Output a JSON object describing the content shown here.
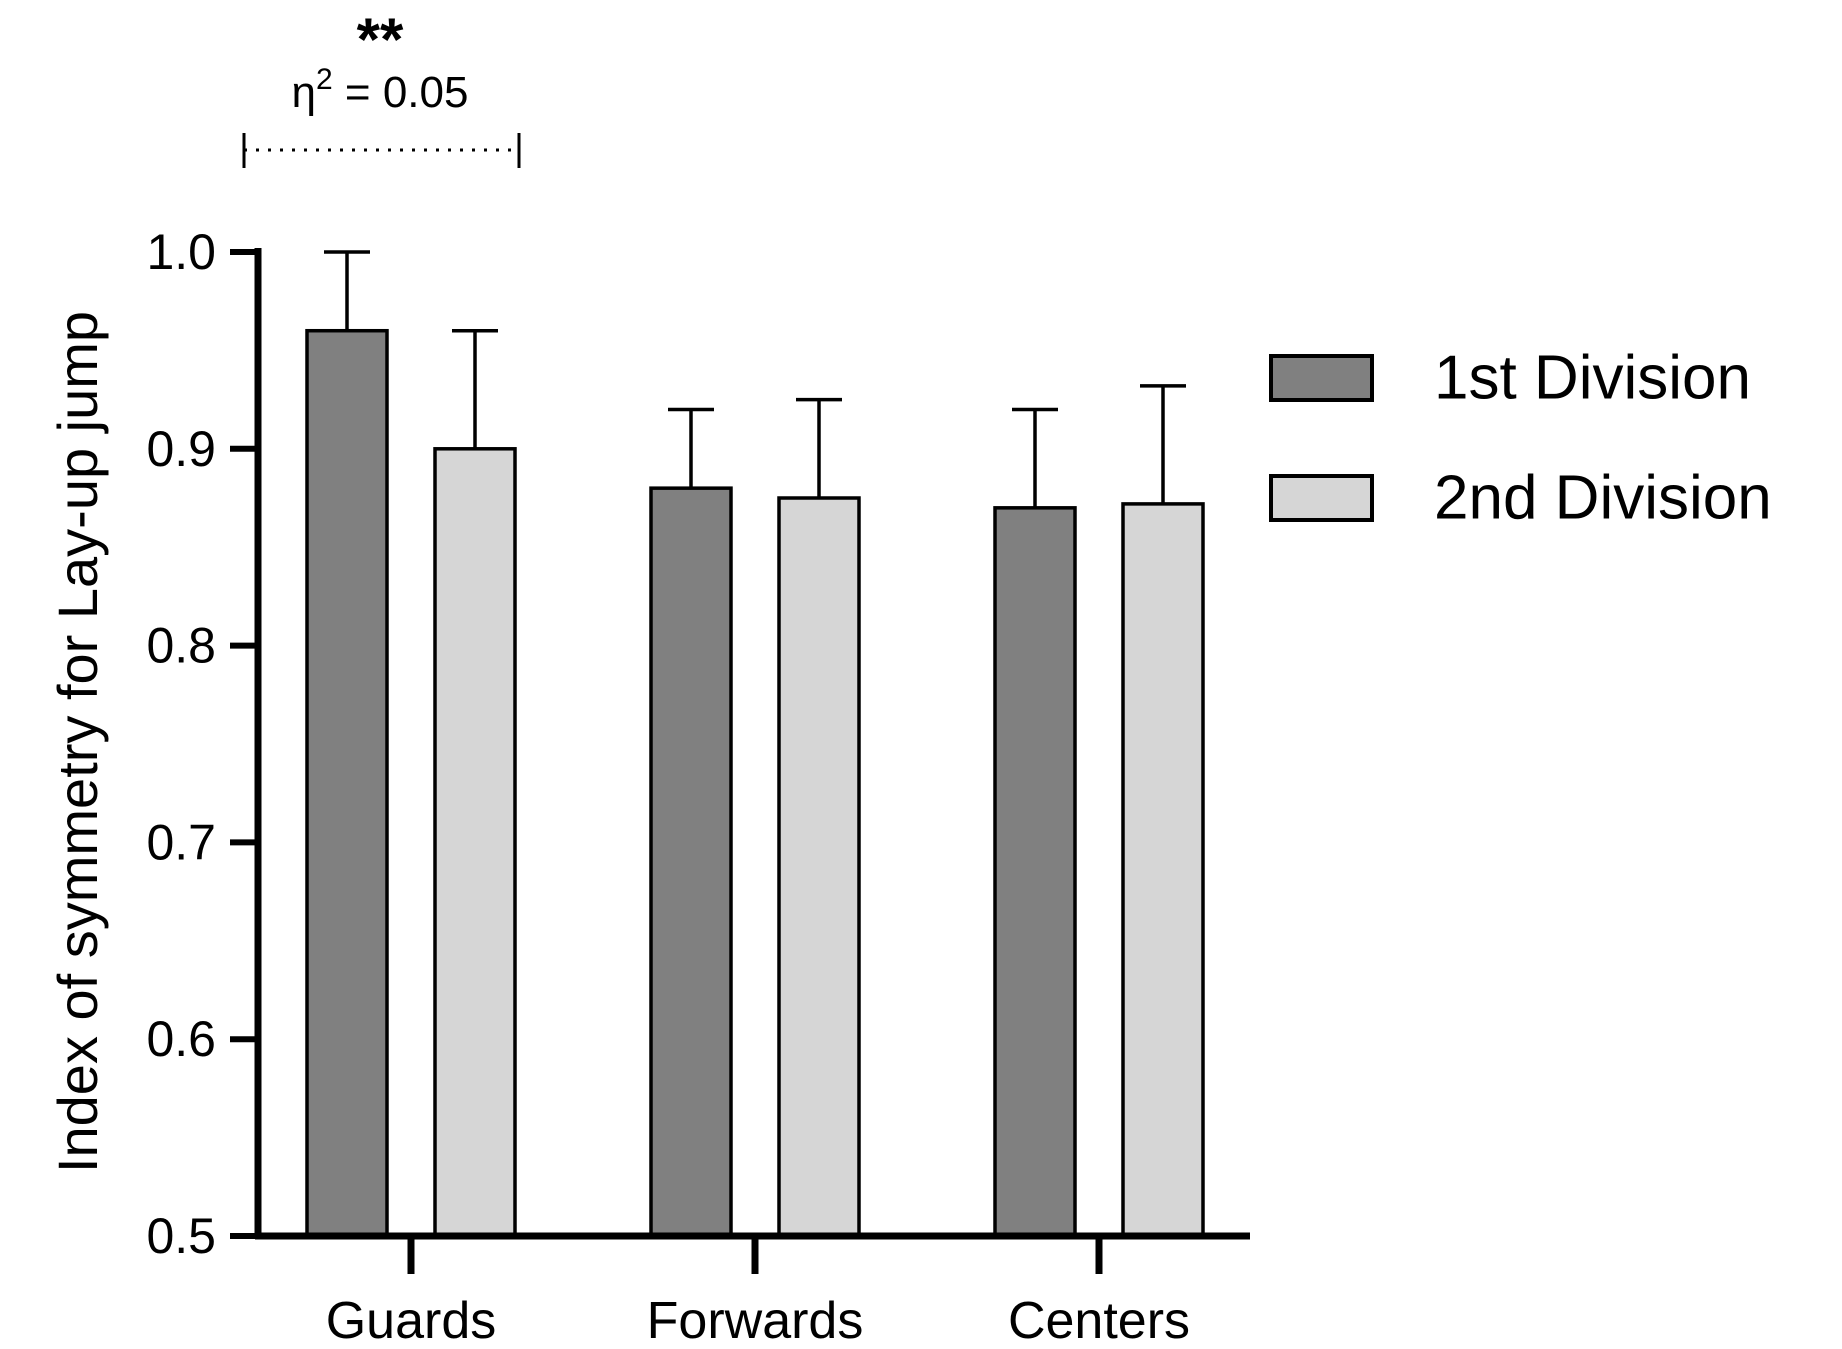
{
  "chart_data": {
    "type": "bar",
    "title": "",
    "xlabel": "",
    "ylabel": "Index of symmetry for Lay-up jump",
    "categories": [
      "Guards",
      "Forwards",
      "Centers"
    ],
    "ylim": [
      0.5,
      1.0
    ],
    "yticks": [
      0.5,
      0.6,
      0.7,
      0.8,
      0.9,
      1.0
    ],
    "ytick_labels": [
      "0.5",
      "0.6",
      "0.7",
      "0.8",
      "0.9",
      "1.0"
    ],
    "grid": false,
    "legend_position": "right",
    "series": [
      {
        "name": "1st Division",
        "color": "#808080",
        "values": [
          0.96,
          0.88,
          0.87
        ],
        "errors": [
          0.04,
          0.04,
          0.05
        ]
      },
      {
        "name": "2nd Division",
        "color": "#d6d6d6",
        "values": [
          0.9,
          0.875,
          0.872
        ],
        "errors": [
          0.06,
          0.05,
          0.06
        ]
      }
    ],
    "annotations": [
      {
        "category": "Guards",
        "stars": "**",
        "stat_symbol": "η",
        "stat_exponent": "2",
        "stat_text": " = 0.05"
      }
    ]
  }
}
